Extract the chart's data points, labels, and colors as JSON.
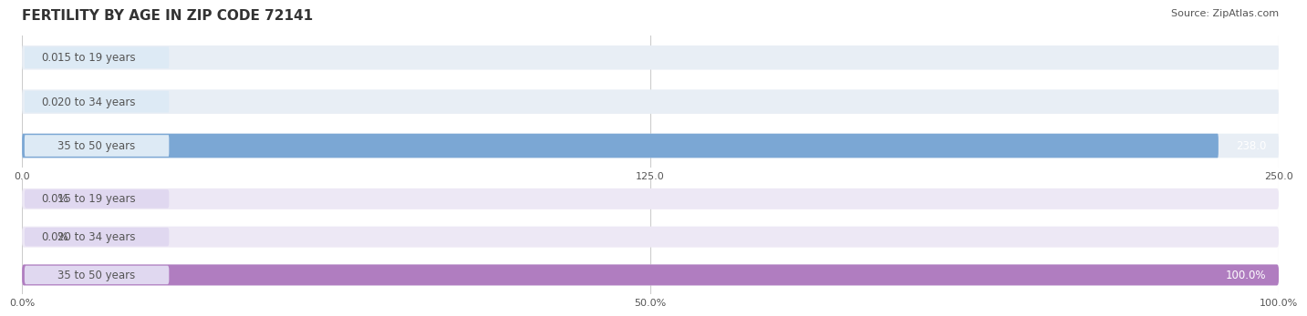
{
  "title": "FERTILITY BY AGE IN ZIP CODE 72141",
  "source": "Source: ZipAtlas.com",
  "top_chart": {
    "categories": [
      "15 to 19 years",
      "20 to 34 years",
      "35 to 50 years"
    ],
    "values": [
      0.0,
      0.0,
      238.0
    ],
    "xlim": [
      0,
      250
    ],
    "xticks": [
      0.0,
      125.0,
      250.0
    ],
    "bar_color": "#7BA7D4",
    "bar_bg_color": "#E8EEF5",
    "label_bg_color": "#DDEAF5",
    "label_text_color": "#555555",
    "value_color_inside": "#FFFFFF",
    "value_color_outside": "#555555",
    "bar_height": 0.55
  },
  "bottom_chart": {
    "categories": [
      "15 to 19 years",
      "20 to 34 years",
      "35 to 50 years"
    ],
    "values": [
      0.0,
      0.0,
      100.0
    ],
    "xlim": [
      0,
      100
    ],
    "xticks": [
      0.0,
      50.0,
      100.0
    ],
    "xtick_labels": [
      "0.0%",
      "50.0%",
      "100.0%"
    ],
    "bar_color": "#B07DC0",
    "bar_bg_color": "#EDE8F5",
    "label_bg_color": "#E0D8F0",
    "label_text_color": "#555555",
    "value_color_inside": "#FFFFFF",
    "value_color_outside": "#555555",
    "bar_height": 0.55
  },
  "background_color": "#FFFFFF",
  "grid_color": "#CCCCCC",
  "title_fontsize": 11,
  "label_fontsize": 8.5,
  "tick_fontsize": 8,
  "source_fontsize": 8
}
